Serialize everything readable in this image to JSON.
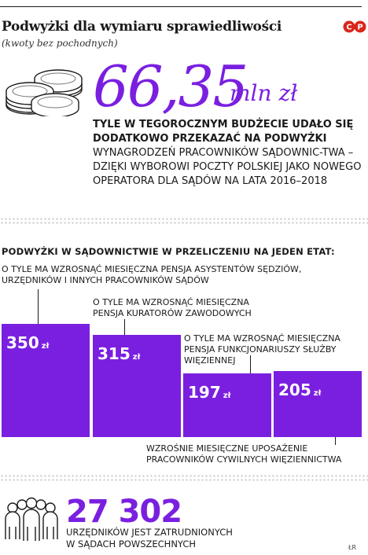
{
  "header": {
    "title": "Podwyżki dla wymiaru sprawiedliwości",
    "subtitle": "(kwoty bez pochodnych)",
    "logo_text": "CP",
    "credit": "ŁR"
  },
  "headline": {
    "value": "66,35",
    "unit": "mln zł",
    "lead_bold_1": "TYLE W TEGOROCZNYM BUDŻECIE UDAŁO SIĘ",
    "lead_bold_2": "DODATKOWO PRZEKAZAĆ NA PODWYŻKI",
    "lead_rest": "WYNAGRODZEŃ PRACOWNIKÓW SĄDOWNIC-TWA – DZIĘKI WYBOROWI POCZTY POLSKIEJ JAKO NOWEGO OPERATORA DLA SĄDÓW NA LATA 2016–2018"
  },
  "section_title": "PODWYŻKI W SĄDOWNICTWIE W PRZELICZENIU NA JEDEN ETAT:",
  "chart_data": {
    "type": "bar",
    "unit": "zł",
    "categories": [
      "O TYLE MA WZROSNĄĆ MIESIĘCZNA PENSJA ASYSTENTÓW SĘDZIÓW, URZĘDNIKÓW I INNYCH PRACOWNIKÓW SĄDÓW",
      "O TYLE MA WZROSNĄĆ MIESIĘCZNA PENSJA KURATORÓW ZAWODOWYCH",
      "O TYLE MA WZROSNĄĆ MIESIĘCZNA PENSJA FUNKCJONARIUSZY SŁUŻBY WIĘZIENNEJ",
      "WZROŚNIE MIESIĘCZNE UPOSAŻENIE PRACOWNIKÓW CYWILNYCH WIĘZIENNICTWA"
    ],
    "values": [
      350,
      315,
      197,
      205
    ],
    "value_labels": [
      "350",
      "315",
      "197",
      "205"
    ],
    "colors": {
      "bar": "#7a1fe0",
      "label": "#ffffff"
    }
  },
  "footer": {
    "count": "27 302",
    "note_1": "URZĘDNIKÓW JEST ZATRUDNIONYCH",
    "note_2": "W SĄDACH POWSZECHNYCH"
  }
}
